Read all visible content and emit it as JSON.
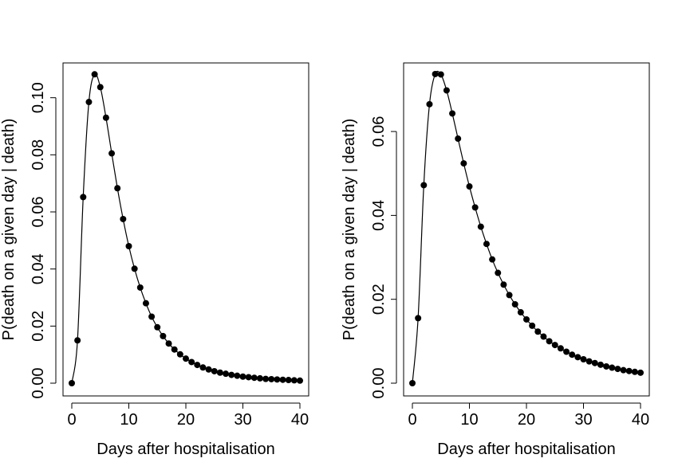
{
  "chart_data": [
    {
      "type": "line",
      "xlabel": "Days after hospitalisation",
      "ylabel": "P(death on a given day | death)",
      "xlim": [
        0,
        40
      ],
      "ylim": [
        0,
        0.108
      ],
      "xticks": [
        0,
        10,
        20,
        30,
        40
      ],
      "yticks": [
        0.0,
        0.02,
        0.04,
        0.06,
        0.08,
        0.1
      ],
      "xtick_labels": [
        "0",
        "10",
        "20",
        "30",
        "40"
      ],
      "ytick_labels": [
        "0.00",
        "0.02",
        "0.04",
        "0.06",
        "0.08",
        "0.10"
      ],
      "grid": false,
      "series": [
        {
          "x": [
            0,
            1,
            2,
            3,
            4,
            5,
            6,
            7,
            8,
            9,
            10,
            11,
            12,
            13,
            14,
            15,
            16,
            17,
            18,
            19,
            20,
            21,
            22,
            23,
            24,
            25,
            26,
            27,
            28,
            29,
            30,
            31,
            32,
            33,
            34,
            35,
            36,
            37,
            38,
            39,
            40
          ],
          "values": [
            0.0,
            0.015,
            0.0652,
            0.0985,
            0.1082,
            0.1037,
            0.093,
            0.0805,
            0.0683,
            0.0575,
            0.048,
            0.0401,
            0.0335,
            0.028,
            0.0233,
            0.0196,
            0.0165,
            0.0139,
            0.0118,
            0.0101,
            0.0086,
            0.0074,
            0.0064,
            0.0055,
            0.0048,
            0.0042,
            0.0037,
            0.0033,
            0.0029,
            0.0026,
            0.0023,
            0.0021,
            0.0019,
            0.0017,
            0.0015,
            0.0014,
            0.0013,
            0.0012,
            0.0011,
            0.001,
            0.0009
          ]
        }
      ]
    },
    {
      "type": "line",
      "xlabel": "Days after hospitalisation",
      "ylabel": "P(death on a given day | death)",
      "xlim": [
        0,
        40
      ],
      "ylim": [
        0,
        0.0735
      ],
      "xticks": [
        0,
        10,
        20,
        30,
        40
      ],
      "yticks": [
        0.0,
        0.02,
        0.04,
        0.06
      ],
      "xtick_labels": [
        "0",
        "10",
        "20",
        "30",
        "40"
      ],
      "ytick_labels": [
        "0.00",
        "0.02",
        "0.04",
        "0.06"
      ],
      "grid": false,
      "series": [
        {
          "x": [
            0,
            1,
            2,
            3,
            4,
            5,
            6,
            7,
            8,
            9,
            10,
            11,
            12,
            13,
            14,
            15,
            16,
            17,
            18,
            19,
            20,
            21,
            22,
            23,
            24,
            25,
            26,
            27,
            28,
            29,
            30,
            31,
            32,
            33,
            34,
            35,
            36,
            37,
            38,
            39,
            40
          ],
          "values": [
            0.0,
            0.0155,
            0.0472,
            0.0665,
            0.0737,
            0.0736,
            0.0698,
            0.0643,
            0.0583,
            0.0524,
            0.0469,
            0.0419,
            0.0373,
            0.0332,
            0.0295,
            0.0263,
            0.0235,
            0.021,
            0.0188,
            0.0169,
            0.0152,
            0.0137,
            0.0123,
            0.0111,
            0.01,
            0.0091,
            0.0083,
            0.0075,
            0.0068,
            0.0062,
            0.0057,
            0.0052,
            0.0048,
            0.0044,
            0.004,
            0.0037,
            0.0034,
            0.0031,
            0.0029,
            0.0027,
            0.0025
          ]
        }
      ]
    }
  ]
}
